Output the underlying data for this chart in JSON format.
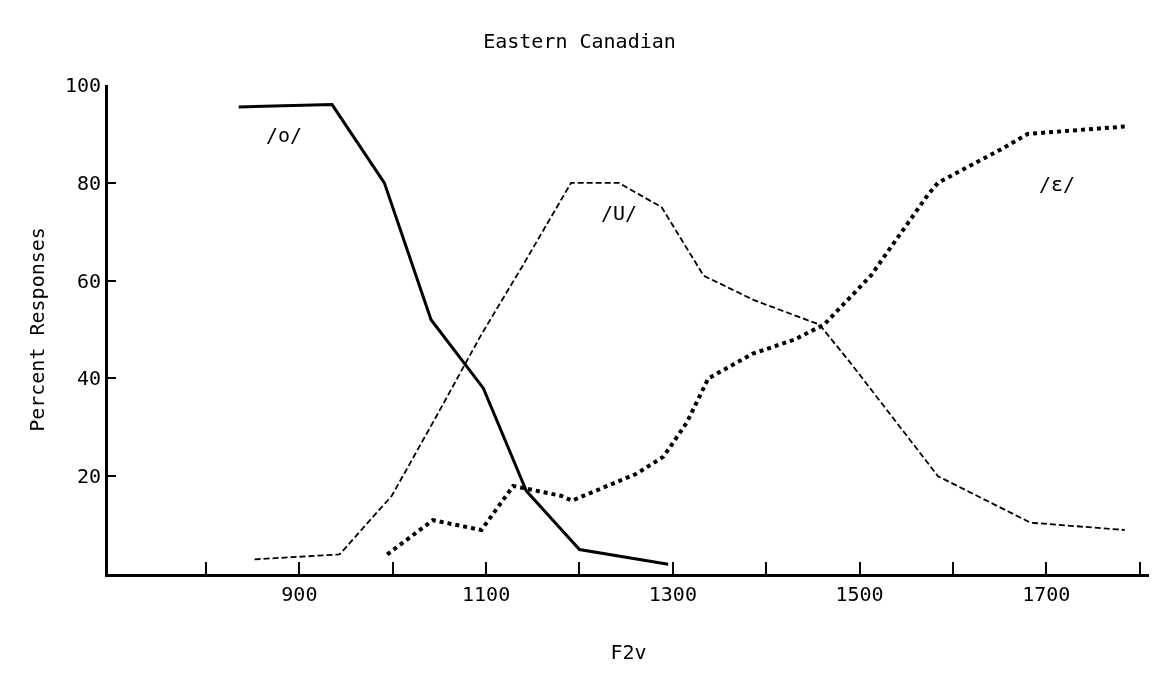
{
  "chart_data": {
    "type": "line",
    "title": "Eastern Canadian",
    "xlabel": "F2v",
    "ylabel": "Percent Responses",
    "xlim": [
      695,
      1810
    ],
    "xticks": [
      {
        "value": 800,
        "label": null
      },
      900,
      {
        "value": 1000,
        "label": null
      },
      1100,
      {
        "value": 1200,
        "label": null
      },
      1300,
      {
        "value": 1400,
        "label": null
      },
      1500,
      {
        "value": 1600,
        "label": null
      },
      1700,
      {
        "value": 1800,
        "label": null
      }
    ],
    "ylim": [
      0,
      100
    ],
    "yticks": [
      20,
      40,
      60,
      80,
      100
    ],
    "legend": false,
    "series": [
      {
        "name": "/o/",
        "color": "#000000",
        "line_style": "solid",
        "x": [
          835,
          935,
          991,
          1041,
          1097,
          1143,
          1200,
          1295
        ],
        "values": [
          95.5,
          96,
          80,
          52,
          38,
          17,
          5,
          2
        ]
      },
      {
        "name": "/U/",
        "color": "#000000",
        "line_style": "dashed",
        "x": [
          852,
          943,
          999,
          1046,
          1095,
          1139,
          1191,
          1242,
          1288,
          1333,
          1387,
          1457,
          1491,
          1584,
          1683,
          1784
        ],
        "values": [
          3,
          4,
          16,
          32,
          49,
          63,
          80,
          80,
          75,
          61,
          56,
          51,
          43,
          20,
          10.5,
          9
        ]
      },
      {
        "name": "/ε/",
        "color": "#000000",
        "line_style": "dotted",
        "x": [
          994,
          1043,
          1095,
          1129,
          1180,
          1192,
          1261,
          1290,
          1315,
          1338,
          1385,
          1431,
          1462,
          1512,
          1573,
          1584,
          1653,
          1680,
          1784
        ],
        "values": [
          4,
          11,
          9,
          18,
          16,
          15,
          20.5,
          24,
          31,
          40,
          45,
          48,
          51,
          61,
          77.5,
          80,
          87,
          90,
          91.5
        ]
      }
    ]
  }
}
